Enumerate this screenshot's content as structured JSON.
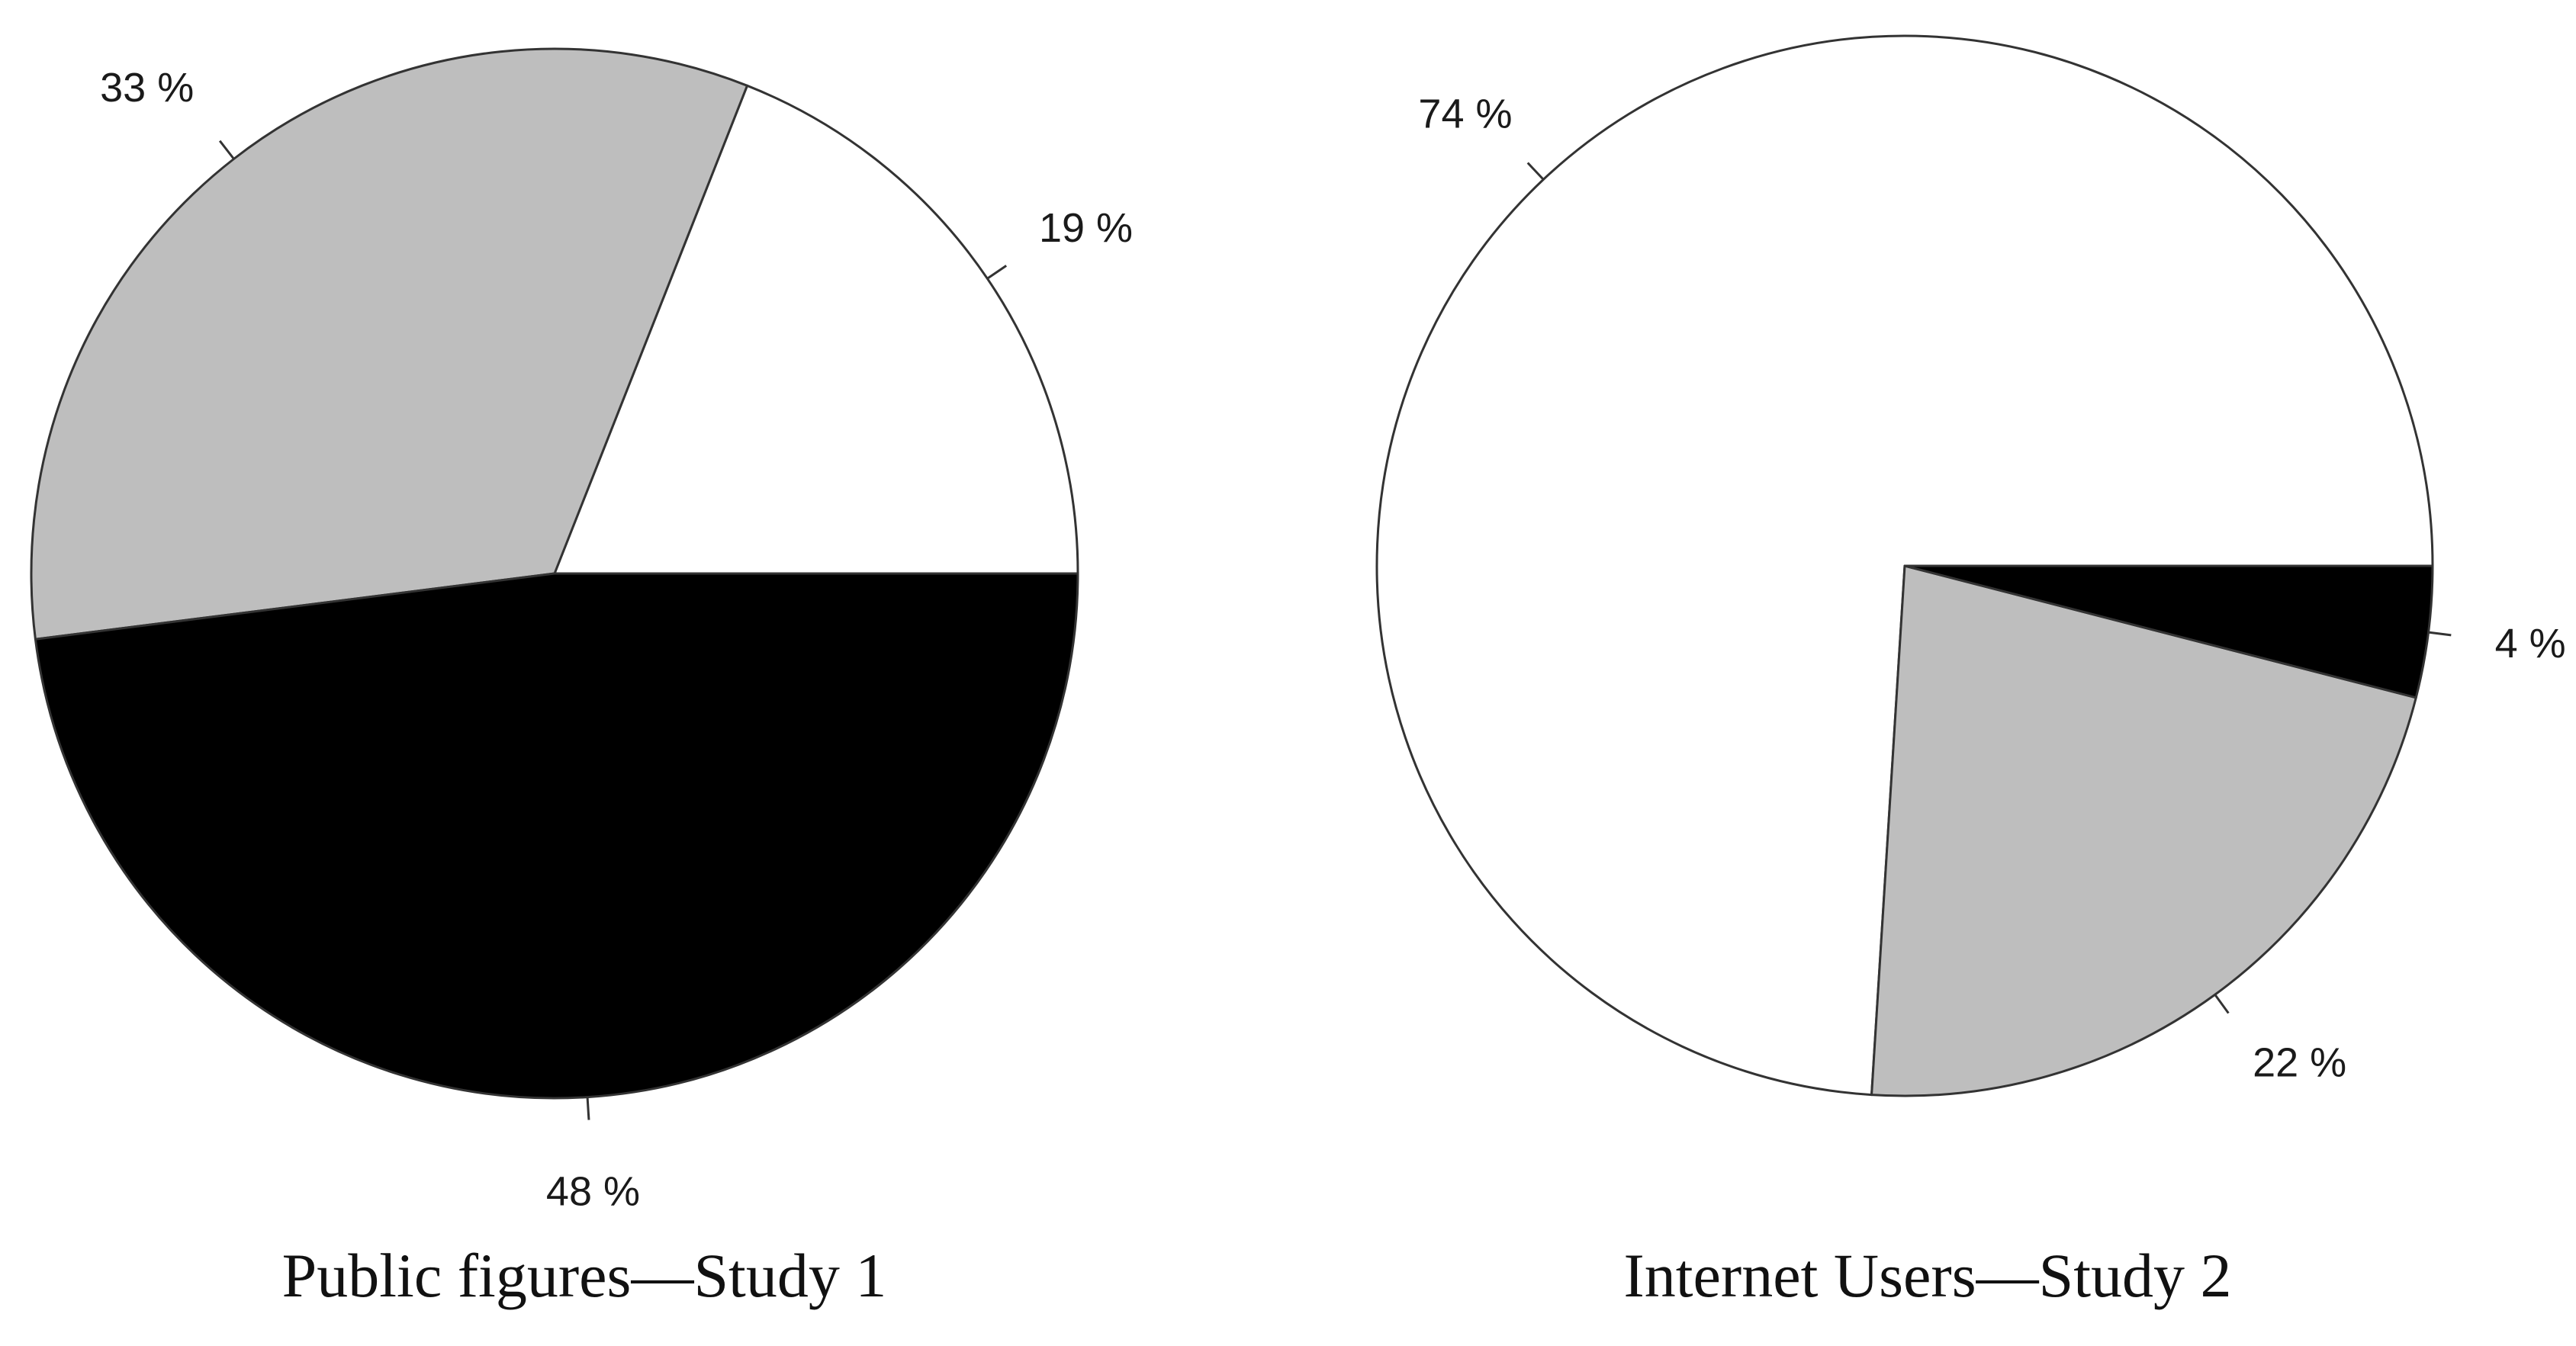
{
  "colors": {
    "black_slice": "#000000",
    "white_slice": "#ffffff",
    "gray_slice": "#bebebe",
    "outline": "#333333"
  },
  "chart_data": [
    {
      "type": "pie",
      "title": "Public figures—Study 1",
      "slices": [
        {
          "value": 19,
          "label": "19 %",
          "color": "#ffffff"
        },
        {
          "value": 33,
          "label": "33 %",
          "color": "#bebebe"
        },
        {
          "value": 48,
          "label": "48 %",
          "color": "#000000"
        }
      ],
      "start_angle_deg": 0,
      "direction": "counterclockwise"
    },
    {
      "type": "pie",
      "title": "Internet Users—Study 2",
      "slices": [
        {
          "value": 74,
          "label": "74 %",
          "color": "#ffffff"
        },
        {
          "value": 22,
          "label": "22 %",
          "color": "#bebebe"
        },
        {
          "value": 4,
          "label": "4 %",
          "color": "#000000"
        }
      ],
      "start_angle_deg": 0,
      "direction": "counterclockwise"
    }
  ]
}
